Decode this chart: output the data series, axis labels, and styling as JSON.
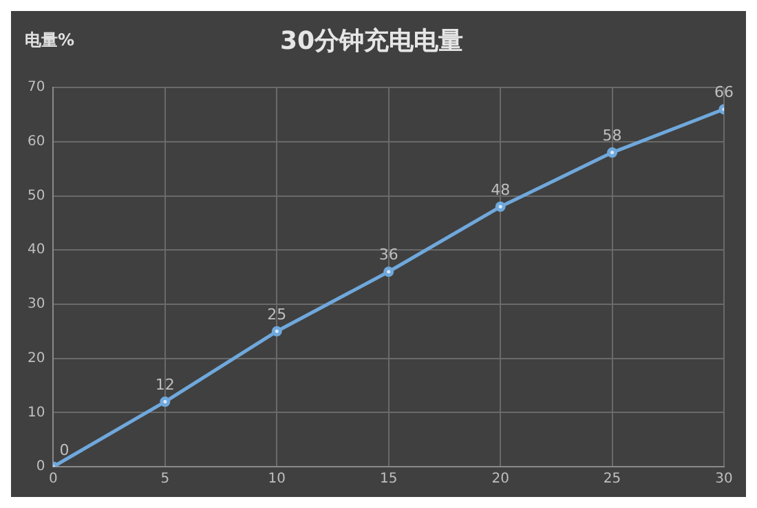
{
  "chart_data": {
    "type": "line",
    "title": "30分钟充电电量",
    "ylabel": "电量%",
    "x": [
      0,
      5,
      10,
      15,
      20,
      25,
      30
    ],
    "series": [
      {
        "color": "#6fa8dc",
        "values": [
          0,
          12,
          25,
          36,
          48,
          58,
          66
        ]
      }
    ],
    "xlim": [
      0,
      30
    ],
    "xticks": [
      0,
      5,
      10,
      15,
      20,
      25,
      30
    ],
    "ylim": [
      0,
      70
    ],
    "yticks": [
      0,
      10,
      20,
      30,
      40,
      50,
      60,
      70
    ],
    "grid": true,
    "legend": false,
    "marker": "circle",
    "line_style": "solid",
    "data_labels": true
  }
}
